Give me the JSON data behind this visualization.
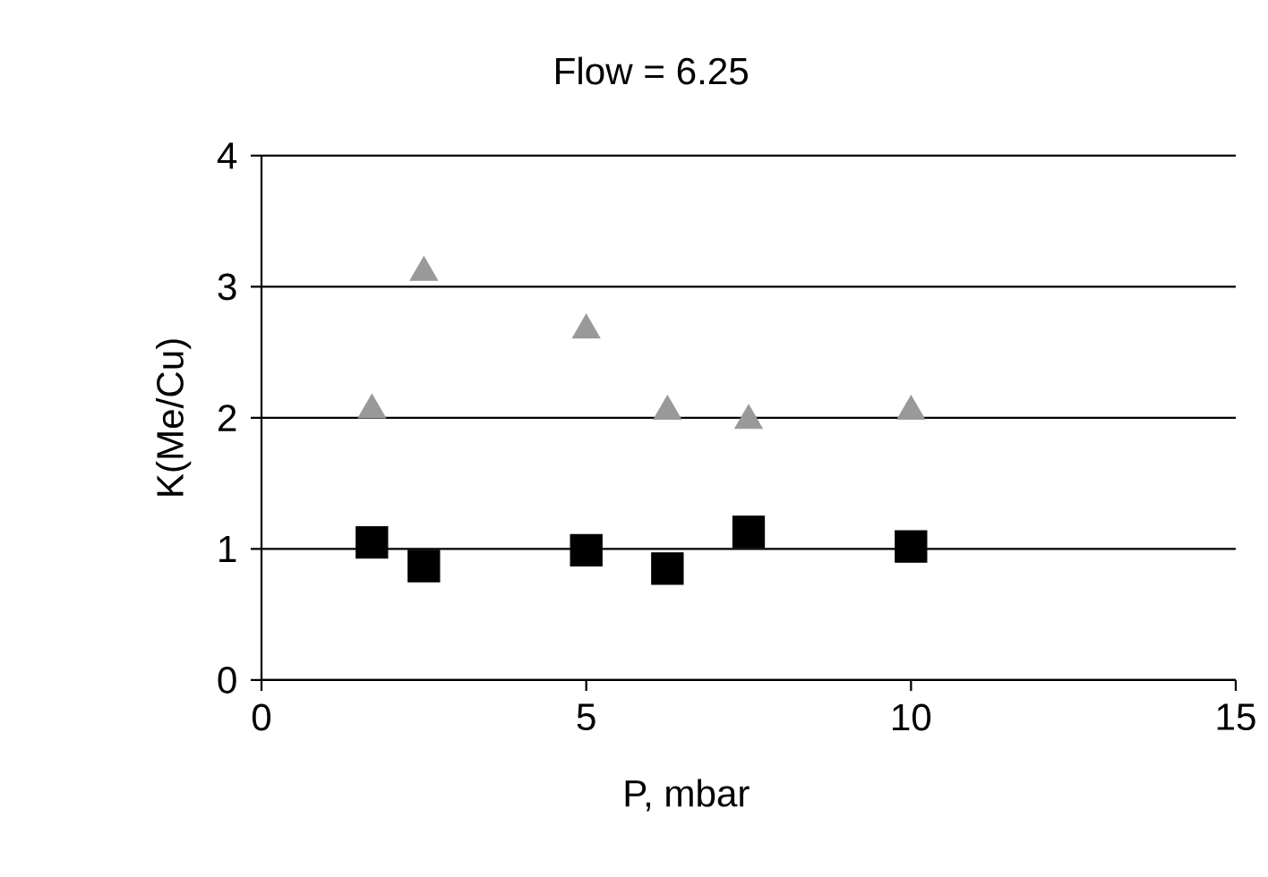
{
  "chart_data": {
    "type": "scatter",
    "title": "Flow = 6.25",
    "xlabel": "P, mbar",
    "ylabel": "K(Me/Cu)",
    "xlim": [
      0,
      15
    ],
    "ylim": [
      0,
      4
    ],
    "xticks": [
      0,
      5,
      10,
      15
    ],
    "yticks": [
      0,
      1,
      2,
      3,
      4
    ],
    "grid": "y",
    "series": [
      {
        "color": "#999999",
        "marker": "triangle",
        "x": [
          1.7,
          2.5,
          5,
          6.25,
          7.5,
          10
        ],
        "values": [
          2.06,
          3.11,
          2.67,
          2.05,
          1.98,
          2.05
        ]
      },
      {
        "color": "#000000",
        "marker": "square",
        "x": [
          1.7,
          2.5,
          5,
          6.25,
          7.5,
          10
        ],
        "values": [
          1.05,
          0.87,
          0.99,
          0.85,
          1.13,
          1.02
        ]
      }
    ]
  }
}
